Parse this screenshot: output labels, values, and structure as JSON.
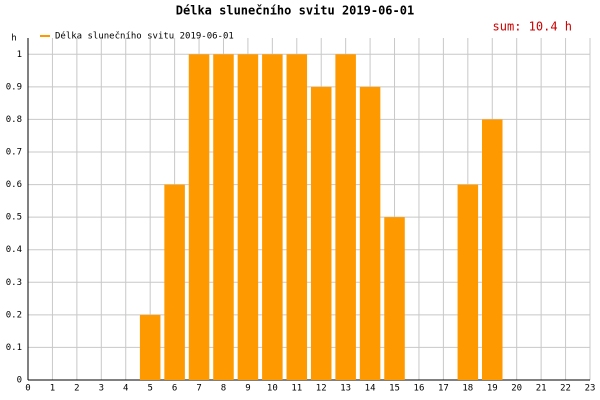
{
  "chart_data": {
    "type": "bar",
    "title": "Délka slunečního svitu 2019-06-01",
    "annotation": "sum: 10.4 h",
    "y_label": "h",
    "series": [
      {
        "name": "Délka slunečního svitu 2019-06-01",
        "color": "#ff9900",
        "x": [
          5,
          6,
          7,
          8,
          9,
          10,
          11,
          12,
          13,
          14,
          15,
          18,
          19
        ],
        "values": [
          0.2,
          0.6,
          1,
          1,
          1,
          1,
          1,
          0.9,
          1,
          0.9,
          0.5,
          0.6,
          0.8
        ]
      }
    ],
    "xlim": [
      0,
      23
    ],
    "xticks": [
      0,
      1,
      2,
      3,
      4,
      5,
      6,
      7,
      8,
      9,
      10,
      11,
      12,
      13,
      14,
      15,
      16,
      17,
      18,
      19,
      20,
      21,
      22,
      23
    ],
    "ylim": [
      0,
      1.05
    ],
    "yticks": [
      0,
      0.1,
      0.2,
      0.3,
      0.4,
      0.5,
      0.6,
      0.7,
      0.8,
      0.9,
      1
    ],
    "grid": true
  }
}
